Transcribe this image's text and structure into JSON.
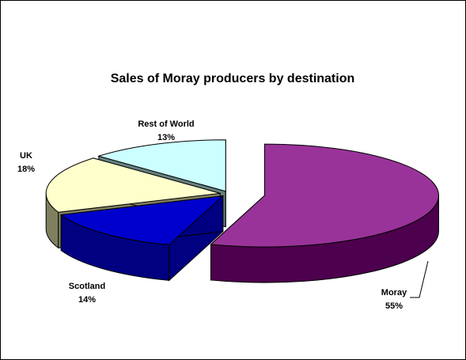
{
  "chart_data": {
    "type": "pie",
    "title": "Sales of Moray producers by destination",
    "categories": [
      "Moray",
      "Scotland",
      "UK",
      "Rest of World"
    ],
    "values": [
      55,
      14,
      18,
      13
    ],
    "value_labels": [
      "55%",
      "14%",
      "18%",
      "13%"
    ],
    "colors": [
      "#993399",
      "#0000cc",
      "#ffffcc",
      "#ccffff"
    ],
    "side_colors": [
      "#4d004d",
      "#000080",
      "#808060",
      "#668080"
    ]
  }
}
